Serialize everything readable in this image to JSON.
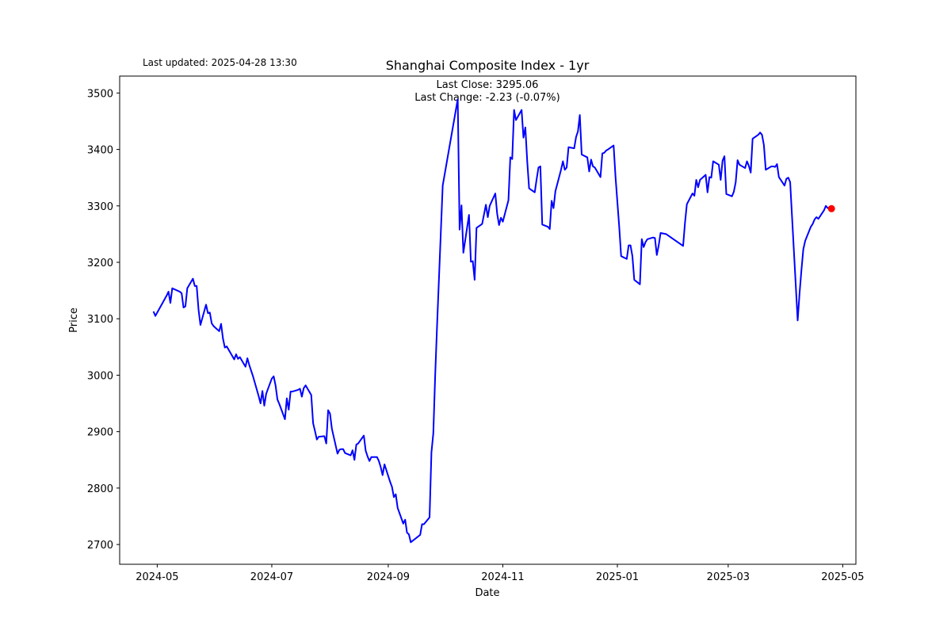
{
  "chart_data": {
    "type": "line",
    "title": "Shanghai Composite Index - 1yr",
    "updated": "Last updated: 2025-04-28 13:30",
    "annotations": [
      "Last Close: 3295.06",
      "Last Change: -2.23 (-0.07%)"
    ],
    "xlabel": "Date",
    "ylabel": "Price",
    "color": "#0000ff",
    "highlight_color": "#ff0000",
    "x": [
      "2024-04-29",
      "2024-04-30",
      "2024-05-06",
      "2024-05-07",
      "2024-05-08",
      "2024-05-09",
      "2024-05-13",
      "2024-05-14",
      "2024-05-15",
      "2024-05-16",
      "2024-05-17",
      "2024-05-20",
      "2024-05-21",
      "2024-05-22",
      "2024-05-23",
      "2024-05-24",
      "2024-05-27",
      "2024-05-28",
      "2024-05-29",
      "2024-05-30",
      "2024-05-31",
      "2024-06-03",
      "2024-06-04",
      "2024-06-05",
      "2024-06-06",
      "2024-06-07",
      "2024-06-11",
      "2024-06-12",
      "2024-06-13",
      "2024-06-14",
      "2024-06-17",
      "2024-06-18",
      "2024-06-19",
      "2024-06-20",
      "2024-06-21",
      "2024-06-24",
      "2024-06-25",
      "2024-06-26",
      "2024-06-27",
      "2024-06-28",
      "2024-07-01",
      "2024-07-02",
      "2024-07-03",
      "2024-07-04",
      "2024-07-05",
      "2024-07-08",
      "2024-07-09",
      "2024-07-10",
      "2024-07-11",
      "2024-07-12",
      "2024-07-15",
      "2024-07-16",
      "2024-07-17",
      "2024-07-18",
      "2024-07-19",
      "2024-07-22",
      "2024-07-23",
      "2024-07-24",
      "2024-07-25",
      "2024-07-26",
      "2024-07-29",
      "2024-07-30",
      "2024-07-31",
      "2024-08-01",
      "2024-08-02",
      "2024-08-05",
      "2024-08-06",
      "2024-08-07",
      "2024-08-08",
      "2024-08-09",
      "2024-08-12",
      "2024-08-13",
      "2024-08-14",
      "2024-08-15",
      "2024-08-16",
      "2024-08-19",
      "2024-08-20",
      "2024-08-21",
      "2024-08-22",
      "2024-08-23",
      "2024-08-26",
      "2024-08-27",
      "2024-08-28",
      "2024-08-29",
      "2024-08-30",
      "2024-09-02",
      "2024-09-03",
      "2024-09-04",
      "2024-09-05",
      "2024-09-06",
      "2024-09-09",
      "2024-09-10",
      "2024-09-11",
      "2024-09-12",
      "2024-09-13",
      "2024-09-18",
      "2024-09-19",
      "2024-09-20",
      "2024-09-23",
      "2024-09-24",
      "2024-09-25",
      "2024-09-26",
      "2024-09-27",
      "2024-09-30",
      "2024-10-08",
      "2024-10-09",
      "2024-10-10",
      "2024-10-11",
      "2024-10-14",
      "2024-10-15",
      "2024-10-16",
      "2024-10-17",
      "2024-10-18",
      "2024-10-21",
      "2024-10-22",
      "2024-10-23",
      "2024-10-24",
      "2024-10-25",
      "2024-10-28",
      "2024-10-29",
      "2024-10-30",
      "2024-10-31",
      "2024-11-01",
      "2024-11-04",
      "2024-11-05",
      "2024-11-06",
      "2024-11-07",
      "2024-11-08",
      "2024-11-11",
      "2024-11-12",
      "2024-11-13",
      "2024-11-14",
      "2024-11-15",
      "2024-11-18",
      "2024-11-19",
      "2024-11-20",
      "2024-11-21",
      "2024-11-22",
      "2024-11-25",
      "2024-11-26",
      "2024-11-27",
      "2024-11-28",
      "2024-11-29",
      "2024-12-02",
      "2024-12-03",
      "2024-12-04",
      "2024-12-05",
      "2024-12-06",
      "2024-12-09",
      "2024-12-10",
      "2024-12-11",
      "2024-12-12",
      "2024-12-13",
      "2024-12-16",
      "2024-12-17",
      "2024-12-18",
      "2024-12-19",
      "2024-12-20",
      "2024-12-23",
      "2024-12-24",
      "2024-12-25",
      "2024-12-26",
      "2024-12-27",
      "2024-12-30",
      "2024-12-31",
      "2025-01-02",
      "2025-01-03",
      "2025-01-06",
      "2025-01-07",
      "2025-01-08",
      "2025-01-09",
      "2025-01-10",
      "2025-01-13",
      "2025-01-14",
      "2025-01-15",
      "2025-01-16",
      "2025-01-17",
      "2025-01-20",
      "2025-01-21",
      "2025-01-22",
      "2025-01-23",
      "2025-01-24",
      "2025-01-27",
      "2025-02-05",
      "2025-02-06",
      "2025-02-07",
      "2025-02-10",
      "2025-02-11",
      "2025-02-12",
      "2025-02-13",
      "2025-02-14",
      "2025-02-17",
      "2025-02-18",
      "2025-02-19",
      "2025-02-20",
      "2025-02-21",
      "2025-02-24",
      "2025-02-25",
      "2025-02-26",
      "2025-02-27",
      "2025-02-28",
      "2025-03-03",
      "2025-03-04",
      "2025-03-05",
      "2025-03-06",
      "2025-03-07",
      "2025-03-10",
      "2025-03-11",
      "2025-03-12",
      "2025-03-13",
      "2025-03-14",
      "2025-03-17",
      "2025-03-18",
      "2025-03-19",
      "2025-03-20",
      "2025-03-21",
      "2025-03-24",
      "2025-03-25",
      "2025-03-26",
      "2025-03-27",
      "2025-03-28",
      "2025-03-31",
      "2025-04-01",
      "2025-04-02",
      "2025-04-03",
      "2025-04-07",
      "2025-04-08",
      "2025-04-09",
      "2025-04-10",
      "2025-04-11",
      "2025-04-14",
      "2025-04-15",
      "2025-04-16",
      "2025-04-17",
      "2025-04-18",
      "2025-04-21",
      "2025-04-22",
      "2025-04-23",
      "2025-04-24",
      "2025-04-25"
    ],
    "values": [
      3113,
      3105,
      3141,
      3148,
      3128,
      3154,
      3148,
      3145,
      3120,
      3122,
      3154,
      3171,
      3158,
      3158,
      3116,
      3089,
      3125,
      3110,
      3111,
      3092,
      3087,
      3078,
      3091,
      3065,
      3049,
      3051,
      3028,
      3037,
      3029,
      3032,
      3015,
      3030,
      3018,
      3008,
      2998,
      2963,
      2950,
      2972,
      2946,
      2967,
      2994,
      2998,
      2982,
      2957,
      2949,
      2922,
      2959,
      2939,
      2971,
      2971,
      2974,
      2976,
      2962,
      2977,
      2982,
      2965,
      2915,
      2901,
      2886,
      2891,
      2892,
      2879,
      2938,
      2932,
      2905,
      2861,
      2868,
      2869,
      2869,
      2862,
      2858,
      2867,
      2850,
      2877,
      2879,
      2893,
      2866,
      2856,
      2848,
      2855,
      2855,
      2848,
      2837,
      2823,
      2842,
      2811,
      2802,
      2784,
      2789,
      2765,
      2737,
      2744,
      2721,
      2718,
      2704,
      2717,
      2736,
      2736,
      2748,
      2863,
      2897,
      3000,
      3088,
      3336,
      3489,
      3258,
      3301,
      3217,
      3284,
      3201,
      3202,
      3169,
      3261,
      3268,
      3285,
      3302,
      3280,
      3300,
      3322,
      3286,
      3266,
      3279,
      3272,
      3310,
      3386,
      3383,
      3470,
      3452,
      3470,
      3421,
      3439,
      3379,
      3331,
      3324,
      3347,
      3368,
      3370,
      3267,
      3263,
      3259,
      3309,
      3296,
      3326,
      3364,
      3379,
      3364,
      3368,
      3404,
      3402,
      3422,
      3432,
      3461,
      3391,
      3386,
      3361,
      3382,
      3370,
      3368,
      3351,
      3393,
      3394,
      3398,
      3400,
      3407,
      3352,
      3262,
      3211,
      3206,
      3230,
      3230,
      3211,
      3169,
      3161,
      3241,
      3227,
      3236,
      3241,
      3244,
      3243,
      3213,
      3230,
      3252,
      3250,
      3229,
      3270,
      3303,
      3322,
      3318,
      3346,
      3333,
      3346,
      3355,
      3324,
      3351,
      3350,
      3379,
      3373,
      3346,
      3380,
      3388,
      3321,
      3317,
      3325,
      3342,
      3381,
      3373,
      3367,
      3379,
      3371,
      3359,
      3419,
      3426,
      3430,
      3426,
      3408,
      3364,
      3370,
      3370,
      3369,
      3374,
      3351,
      3336,
      3348,
      3350,
      3342,
      3097,
      3145,
      3186,
      3223,
      3238,
      3263,
      3268,
      3276,
      3280,
      3277,
      3292,
      3300,
      3296,
      3297.29,
      3295.06
    ],
    "xlim": [
      "2024-04-11",
      "2025-05-08"
    ],
    "xticks": [
      {
        "value": "2024-05-01",
        "label": "2024-05"
      },
      {
        "value": "2024-07-01",
        "label": "2024-07"
      },
      {
        "value": "2024-09-01",
        "label": "2024-09"
      },
      {
        "value": "2024-11-01",
        "label": "2024-11"
      },
      {
        "value": "2025-01-01",
        "label": "2025-01"
      },
      {
        "value": "2025-03-01",
        "label": "2025-03"
      },
      {
        "value": "2025-05-01",
        "label": "2025-05"
      }
    ],
    "ylim": [
      2665,
      3530
    ],
    "yticks": [
      2700,
      2800,
      2900,
      3000,
      3100,
      3200,
      3300,
      3400,
      3500
    ]
  }
}
